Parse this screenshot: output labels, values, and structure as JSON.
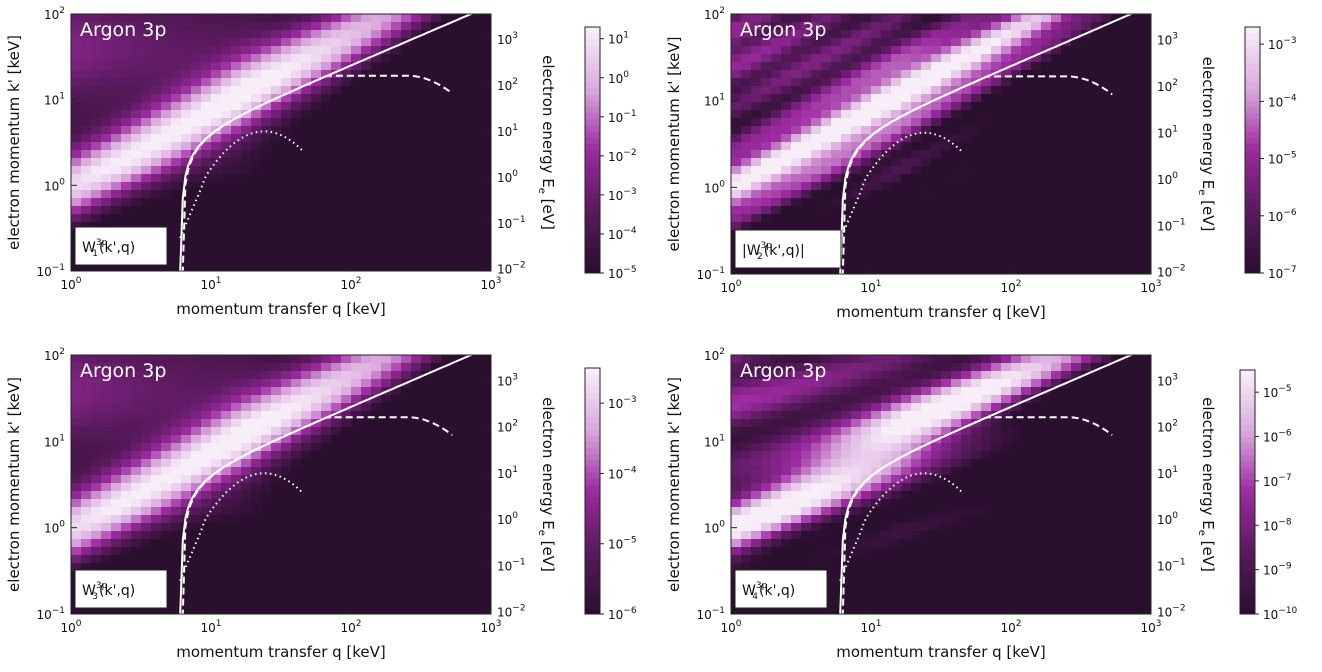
{
  "chart_data": [
    {
      "type": "heatmap",
      "title": "Argon 3p",
      "function_label": {
        "pre": "W",
        "sub": "1",
        "sup": "3p",
        "post": "(k',q)",
        "abs": false
      },
      "xlabel": "momentum transfer q [keV]",
      "ylabel": "electron momentum k' [keV]",
      "y2label": "electron energy E",
      "y2label_sub": "e",
      "y2label_unit": " [eV]",
      "x_scale": "log",
      "xlim": [
        1,
        1000
      ],
      "y_scale": "log",
      "ylim": [
        0.1,
        100
      ],
      "x_ticks": [
        {
          "base": "10",
          "exp": "0"
        },
        {
          "base": "10",
          "exp": "1"
        },
        {
          "base": "10",
          "exp": "2"
        },
        {
          "base": "10",
          "exp": "3"
        }
      ],
      "y_ticks": [
        {
          "base": "10",
          "exp": "−1"
        },
        {
          "base": "10",
          "exp": "0"
        },
        {
          "base": "10",
          "exp": "1"
        },
        {
          "base": "10",
          "exp": "2"
        }
      ],
      "y2_ticks": [
        {
          "base": "10",
          "exp": "−2"
        },
        {
          "base": "10",
          "exp": "−1"
        },
        {
          "base": "10",
          "exp": "0"
        },
        {
          "base": "10",
          "exp": "1"
        },
        {
          "base": "10",
          "exp": "2"
        },
        {
          "base": "10",
          "exp": "3"
        }
      ],
      "colorbar_ticks": [
        {
          "base": "10",
          "exp": "1"
        },
        {
          "base": "10",
          "exp": "0"
        },
        {
          "base": "10",
          "exp": "−1"
        },
        {
          "base": "10",
          "exp": "−2"
        },
        {
          "base": "10",
          "exp": "−3"
        },
        {
          "base": "10",
          "exp": "−4"
        },
        {
          "base": "10",
          "exp": "−5"
        }
      ],
      "colorbar_range_log10": [
        -5,
        1.3
      ],
      "fringe_pattern": "smooth",
      "colormap": [
        "#2b0f2f",
        "#5a1a5e",
        "#9c2aa0",
        "#d9a8dc",
        "#f7eef8"
      ]
    },
    {
      "type": "heatmap",
      "title": "Argon 3p",
      "function_label": {
        "pre": "W",
        "sub": "2",
        "sup": "3p",
        "post": "(k',q)",
        "abs": true
      },
      "xlabel": "momentum transfer q [keV]",
      "ylabel": "electron momentum k' [keV]",
      "y2label": "electron energy E",
      "y2label_sub": "e",
      "y2label_unit": " [eV]",
      "x_scale": "log",
      "xlim": [
        1,
        1000
      ],
      "y_scale": "log",
      "ylim": [
        0.1,
        100
      ],
      "x_ticks": [
        {
          "base": "10",
          "exp": "0"
        },
        {
          "base": "10",
          "exp": "1"
        },
        {
          "base": "10",
          "exp": "2"
        },
        {
          "base": "10",
          "exp": "3"
        }
      ],
      "y_ticks": [
        {
          "base": "10",
          "exp": "−1"
        },
        {
          "base": "10",
          "exp": "0"
        },
        {
          "base": "10",
          "exp": "1"
        },
        {
          "base": "10",
          "exp": "2"
        }
      ],
      "y2_ticks": [
        {
          "base": "10",
          "exp": "−2"
        },
        {
          "base": "10",
          "exp": "−1"
        },
        {
          "base": "10",
          "exp": "0"
        },
        {
          "base": "10",
          "exp": "1"
        },
        {
          "base": "10",
          "exp": "2"
        },
        {
          "base": "10",
          "exp": "3"
        }
      ],
      "colorbar_ticks": [
        {
          "base": "10",
          "exp": "−3"
        },
        {
          "base": "10",
          "exp": "−4"
        },
        {
          "base": "10",
          "exp": "−5"
        },
        {
          "base": "10",
          "exp": "−6"
        },
        {
          "base": "10",
          "exp": "−7"
        }
      ],
      "colorbar_range_log10": [
        -7,
        -2.7
      ],
      "fringe_pattern": "nodes",
      "colormap": [
        "#2b0f2f",
        "#5a1a5e",
        "#9c2aa0",
        "#d9a8dc",
        "#f7eef8"
      ]
    },
    {
      "type": "heatmap",
      "title": "Argon 3p",
      "function_label": {
        "pre": "W",
        "sub": "3",
        "sup": "3p",
        "post": "(k',q)",
        "abs": false
      },
      "xlabel": "momentum transfer q [keV]",
      "ylabel": "electron momentum k' [keV]",
      "y2label": "electron energy E",
      "y2label_sub": "e",
      "y2label_unit": " [eV]",
      "x_scale": "log",
      "xlim": [
        1,
        1000
      ],
      "y_scale": "log",
      "ylim": [
        0.1,
        100
      ],
      "x_ticks": [
        {
          "base": "10",
          "exp": "0"
        },
        {
          "base": "10",
          "exp": "1"
        },
        {
          "base": "10",
          "exp": "2"
        },
        {
          "base": "10",
          "exp": "3"
        }
      ],
      "y_ticks": [
        {
          "base": "10",
          "exp": "−1"
        },
        {
          "base": "10",
          "exp": "0"
        },
        {
          "base": "10",
          "exp": "1"
        },
        {
          "base": "10",
          "exp": "2"
        }
      ],
      "y2_ticks": [
        {
          "base": "10",
          "exp": "−2"
        },
        {
          "base": "10",
          "exp": "−1"
        },
        {
          "base": "10",
          "exp": "0"
        },
        {
          "base": "10",
          "exp": "1"
        },
        {
          "base": "10",
          "exp": "2"
        },
        {
          "base": "10",
          "exp": "3"
        }
      ],
      "colorbar_ticks": [
        {
          "base": "10",
          "exp": "−3"
        },
        {
          "base": "10",
          "exp": "−4"
        },
        {
          "base": "10",
          "exp": "−5"
        },
        {
          "base": "10",
          "exp": "−6"
        }
      ],
      "colorbar_range_log10": [
        -6,
        -2.5
      ],
      "fringe_pattern": "smooth",
      "colormap": [
        "#2b0f2f",
        "#5a1a5e",
        "#9c2aa0",
        "#d9a8dc",
        "#f7eef8"
      ]
    },
    {
      "type": "heatmap",
      "title": "Argon 3p",
      "function_label": {
        "pre": "W",
        "sub": "4",
        "sup": "3p",
        "post": "(k',q)",
        "abs": false
      },
      "xlabel": "momentum transfer q [keV]",
      "ylabel": "electron momentum k' [keV]",
      "y2label": "electron energy E",
      "y2label_sub": "e",
      "y2label_unit": " [eV]",
      "x_scale": "log",
      "xlim": [
        1,
        1000
      ],
      "y_scale": "log",
      "ylim": [
        0.1,
        100
      ],
      "x_ticks": [
        {
          "base": "10",
          "exp": "0"
        },
        {
          "base": "10",
          "exp": "1"
        },
        {
          "base": "10",
          "exp": "2"
        },
        {
          "base": "10",
          "exp": "3"
        }
      ],
      "y_ticks": [
        {
          "base": "10",
          "exp": "−1"
        },
        {
          "base": "10",
          "exp": "0"
        },
        {
          "base": "10",
          "exp": "1"
        },
        {
          "base": "10",
          "exp": "2"
        }
      ],
      "y2_ticks": [
        {
          "base": "10",
          "exp": "−2"
        },
        {
          "base": "10",
          "exp": "−1"
        },
        {
          "base": "10",
          "exp": "0"
        },
        {
          "base": "10",
          "exp": "1"
        },
        {
          "base": "10",
          "exp": "2"
        },
        {
          "base": "10",
          "exp": "3"
        }
      ],
      "colorbar_ticks": [
        {
          "base": "10",
          "exp": "−5"
        },
        {
          "base": "10",
          "exp": "−6"
        },
        {
          "base": "10",
          "exp": "−7"
        },
        {
          "base": "10",
          "exp": "−8"
        },
        {
          "base": "10",
          "exp": "−9"
        },
        {
          "base": "10",
          "exp": "−10"
        }
      ],
      "colorbar_range_log10": [
        -10,
        -4.5
      ],
      "fringe_pattern": "fringes",
      "colormap": [
        "#2b0f2f",
        "#5a1a5e",
        "#9c2aa0",
        "#d9a8dc",
        "#f7eef8"
      ]
    }
  ],
  "boundary_curves": [
    {
      "style": "solid",
      "color": "#ffffff"
    },
    {
      "style": "dashed",
      "color": "#ffffff"
    },
    {
      "style": "dotted",
      "color": "#ffffff"
    }
  ]
}
